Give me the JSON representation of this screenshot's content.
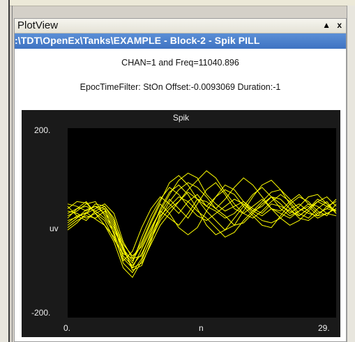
{
  "panel": {
    "title": "PlotView",
    "pin_icon": "▲",
    "close_icon": "x",
    "path": ":\\TDT\\OpenEx\\Tanks\\EXAMPLE - Block-2 - Spik PILL"
  },
  "info": {
    "channel_line": "CHAN=1 and Freq=11040.896",
    "filter_line": "EpocTimeFilter: StOn  Offset:-0.0093069  Duration:-1"
  },
  "chart_data": {
    "type": "line",
    "title": "Spik",
    "xlabel": "n",
    "ylabel": "uv",
    "x_tick_labels": [
      "0.",
      "29."
    ],
    "y_tick_labels": [
      "200.",
      "-200."
    ],
    "xlim": [
      0,
      29
    ],
    "ylim": [
      -200,
      200
    ],
    "grid": false,
    "line_color": "#ffff00",
    "background": "#000000",
    "series": [
      {
        "values": [
          5,
          12,
          22,
          8,
          -5,
          -30,
          -80,
          -60,
          -10,
          30,
          55,
          40,
          20,
          45,
          60,
          35,
          25,
          10,
          20,
          40,
          25,
          15,
          30,
          20,
          10,
          25,
          35,
          15,
          20,
          30
        ]
      },
      {
        "values": [
          20,
          30,
          35,
          25,
          10,
          -20,
          -75,
          -95,
          -55,
          -15,
          25,
          60,
          90,
          105,
          95,
          60,
          40,
          25,
          35,
          45,
          30,
          20,
          40,
          35,
          25,
          15,
          30,
          45,
          35,
          25
        ]
      },
      {
        "values": [
          -5,
          10,
          28,
          35,
          30,
          0,
          -60,
          -85,
          -30,
          15,
          50,
          75,
          60,
          35,
          15,
          5,
          20,
          35,
          50,
          40,
          20,
          5,
          0,
          10,
          30,
          40,
          25,
          10,
          20,
          15
        ]
      },
      {
        "values": [
          30,
          45,
          42,
          20,
          -5,
          -40,
          -95,
          -115,
          -80,
          -30,
          10,
          45,
          70,
          85,
          75,
          55,
          30,
          15,
          -5,
          0,
          20,
          40,
          55,
          50,
          30,
          10,
          5,
          20,
          30,
          25
        ]
      },
      {
        "values": [
          0,
          15,
          20,
          30,
          40,
          20,
          -40,
          -75,
          -70,
          -20,
          30,
          65,
          80,
          60,
          30,
          -5,
          -25,
          -15,
          10,
          35,
          60,
          75,
          55,
          30,
          15,
          25,
          40,
          35,
          20,
          30
        ]
      },
      {
        "values": [
          15,
          25,
          40,
          45,
          15,
          -15,
          -55,
          -80,
          -45,
          0,
          40,
          20,
          -10,
          -25,
          -10,
          25,
          55,
          70,
          60,
          35,
          15,
          -5,
          -10,
          15,
          40,
          55,
          45,
          25,
          15,
          40
        ]
      },
      {
        "values": [
          40,
          35,
          25,
          35,
          20,
          -10,
          -50,
          -100,
          -90,
          -40,
          20,
          50,
          30,
          10,
          40,
          70,
          85,
          60,
          30,
          20,
          35,
          50,
          30,
          10,
          -5,
          5,
          25,
          45,
          55,
          35
        ]
      },
      {
        "values": [
          -10,
          5,
          15,
          10,
          25,
          -5,
          -70,
          -90,
          -65,
          -25,
          15,
          35,
          55,
          45,
          25,
          10,
          -10,
          -30,
          -20,
          5,
          25,
          45,
          65,
          70,
          50,
          30,
          20,
          15,
          35,
          45
        ]
      },
      {
        "values": [
          25,
          20,
          10,
          20,
          30,
          -25,
          -85,
          -105,
          -75,
          -35,
          5,
          30,
          45,
          70,
          90,
          110,
          95,
          65,
          40,
          20,
          10,
          25,
          45,
          60,
          45,
          20,
          10,
          30,
          45,
          20
        ]
      },
      {
        "values": [
          10,
          30,
          45,
          20,
          5,
          -35,
          -65,
          -75,
          -40,
          5,
          45,
          85,
          100,
          80,
          50,
          25,
          5,
          -15,
          -5,
          25,
          55,
          80,
          90,
          70,
          40,
          15,
          30,
          50,
          40,
          25
        ]
      },
      {
        "values": [
          35,
          15,
          5,
          25,
          35,
          5,
          -45,
          -70,
          -50,
          -10,
          25,
          10,
          -5,
          20,
          50,
          45,
          30,
          50,
          75,
          95,
          80,
          55,
          30,
          25,
          45,
          60,
          40,
          20,
          30,
          50
        ]
      },
      {
        "values": [
          -15,
          0,
          20,
          40,
          35,
          10,
          -55,
          -95,
          -85,
          -45,
          -5,
          20,
          45,
          65,
          50,
          35,
          55,
          80,
          70,
          45,
          25,
          35,
          55,
          40,
          20,
          35,
          55,
          60,
          40,
          20
        ]
      }
    ]
  }
}
